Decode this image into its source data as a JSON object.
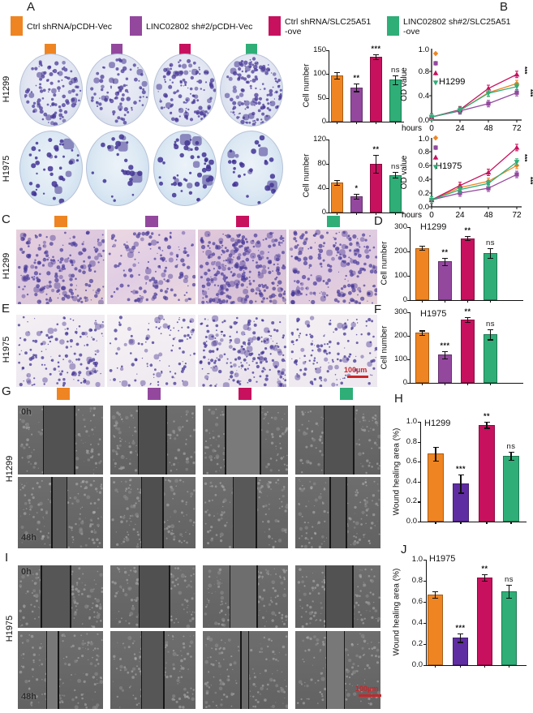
{
  "colors": {
    "series": [
      "#EE8522",
      "#93489E",
      "#C8115E",
      "#2FAE78"
    ],
    "dark_purple": "#5F2DA2",
    "scale_bar": "#C8262A",
    "axis": "#111111"
  },
  "conditions": [
    "Ctrl shRNA/pCDH-Vec",
    "LINC02802 sh#2/pCDH-Vec",
    "Ctrl shRNA/SLC25A51-ove",
    "LINC02802 sh#2/SLC25A51-ove"
  ],
  "cell_lines": [
    "H1299",
    "H1975"
  ],
  "legend": {
    "items": [
      {
        "label": "Ctrl shRNA/pCDH-Vec",
        "label2": ""
      },
      {
        "label": "LINC02802 sh#2/pCDH-Vec",
        "label2": ""
      },
      {
        "label": "Ctrl shRNA/SLC25A51",
        "label2": "-ove"
      },
      {
        "label": "LINC02802 sh#2/SLC25A51",
        "label2": "-ove"
      }
    ]
  },
  "panels": {
    "a": {
      "label": "A",
      "row_labels": [
        "H1299",
        "H1975"
      ]
    },
    "b": {
      "label": "B"
    },
    "c": {
      "label": "C",
      "row_label": "H1299"
    },
    "d": {
      "label": "D"
    },
    "e": {
      "label": "E",
      "row_label": "H1975",
      "scale_bar": "100µm"
    },
    "f": {
      "label": "F"
    },
    "g": {
      "label": "G",
      "row_label": "H1299",
      "time_labels": [
        "0h",
        "48h"
      ]
    },
    "h": {
      "label": "H"
    },
    "i": {
      "label": "I",
      "row_label": "H1975",
      "time_labels": [
        "0h",
        "48h"
      ],
      "scale_bar": "100µm"
    },
    "j": {
      "label": "J"
    }
  },
  "chart_data": [
    {
      "id": "A_h1299_colony",
      "panel": "A",
      "type": "bar",
      "title": "",
      "ylabel": "Cell number",
      "categories": [
        "Ctrl shRNA/pCDH-Vec",
        "LINC02802 sh#2/pCDH-Vec",
        "Ctrl shRNA/SLC25A51-ove",
        "LINC02802 sh#2/SLC25A51-ove"
      ],
      "values": [
        97,
        72,
        137,
        88
      ],
      "errors": [
        7,
        8,
        5,
        9
      ],
      "sig": [
        "",
        "**",
        "***",
        "ns"
      ],
      "ylim": [
        0,
        150
      ],
      "yticks": [
        0,
        50,
        100,
        150
      ],
      "ytick_labels": [
        "0",
        "50",
        "100",
        "150"
      ]
    },
    {
      "id": "A_h1975_colony",
      "panel": "A",
      "type": "bar",
      "title": "",
      "ylabel": "Cell number",
      "categories": [
        "Ctrl shRNA/pCDH-Vec",
        "LINC02802 sh#2/pCDH-Vec",
        "Ctrl shRNA/SLC25A51-ove",
        "LINC02802 sh#2/SLC25A51-ove"
      ],
      "values": [
        50,
        27,
        80,
        62
      ],
      "errors": [
        4,
        4,
        15,
        5
      ],
      "sig": [
        "",
        "*",
        "**",
        "ns"
      ],
      "ylim": [
        0,
        120
      ],
      "yticks": [
        0,
        40,
        80,
        120
      ],
      "ytick_labels": [
        "0",
        "40",
        "80",
        "120"
      ]
    },
    {
      "id": "B_h1299_cck8",
      "panel": "B",
      "type": "line",
      "title": "H1299",
      "ylabel": "OD value",
      "xlabel": "hours",
      "x": [
        0,
        24,
        48,
        72
      ],
      "xtick_labels": [
        "0",
        "24",
        "48",
        "72"
      ],
      "ylim": [
        0,
        1.0
      ],
      "yticks": [
        0,
        0.4,
        0.8
      ],
      "ytick_labels": [
        "0.0",
        "0.4",
        "0.8"
      ],
      "ymax_label": "1.0",
      "series": [
        {
          "name": "Ctrl shRNA/pCDH-Vec",
          "values": [
            0.05,
            0.16,
            0.45,
            0.6
          ]
        },
        {
          "name": "LINC02802 sh#2/pCDH-Vec",
          "values": [
            0.05,
            0.15,
            0.27,
            0.45
          ]
        },
        {
          "name": "Ctrl shRNA/SLC25A51-ove",
          "values": [
            0.05,
            0.17,
            0.52,
            0.75
          ]
        },
        {
          "name": "LINC02802 sh#2/SLC25A51-ove",
          "values": [
            0.05,
            0.16,
            0.44,
            0.55
          ]
        }
      ],
      "sig": [
        "***",
        "***"
      ]
    },
    {
      "id": "B_h1975_cck8",
      "panel": "B",
      "type": "line",
      "title": "H1975",
      "ylabel": "OD value",
      "xlabel": "hours",
      "x": [
        0,
        24,
        48,
        72
      ],
      "xtick_labels": [
        "0",
        "24",
        "48",
        "72"
      ],
      "ylim": [
        0,
        1.0
      ],
      "yticks": [
        0,
        0.2,
        0.4,
        0.6,
        0.8
      ],
      "ytick_labels": [
        "0.0",
        "0.2",
        "0.4",
        "0.6",
        "0.8"
      ],
      "ymax_label": "1.0",
      "series": [
        {
          "name": "Ctrl shRNA/pCDH-Vec",
          "values": [
            0.1,
            0.28,
            0.37,
            0.6
          ]
        },
        {
          "name": "LINC02802 sh#2/pCDH-Vec",
          "values": [
            0.1,
            0.2,
            0.27,
            0.47
          ]
        },
        {
          "name": "Ctrl shRNA/SLC25A51-ove",
          "values": [
            0.1,
            0.31,
            0.5,
            0.86
          ]
        },
        {
          "name": "LINC02802 sh#2/SLC25A51-ove",
          "values": [
            0.1,
            0.25,
            0.34,
            0.65
          ]
        }
      ],
      "sig": [
        "***",
        "***"
      ]
    },
    {
      "id": "D_h1299_transwell",
      "panel": "D",
      "type": "bar",
      "title": "H1299",
      "ylabel": "Cell number",
      "categories": [
        "Ctrl shRNA/pCDH-Vec",
        "LINC02802 sh#2/pCDH-Vec",
        "Ctrl shRNA/SLC25A51-ove",
        "LINC02802 sh#2/SLC25A51-ove"
      ],
      "values": [
        215,
        160,
        255,
        195
      ],
      "errors": [
        8,
        15,
        8,
        20
      ],
      "sig": [
        "",
        "**",
        "**",
        "ns"
      ],
      "ylim": [
        0,
        300
      ],
      "yticks": [
        0,
        100,
        200,
        300
      ],
      "ytick_labels": [
        "0",
        "100",
        "200",
        "300"
      ]
    },
    {
      "id": "F_h1975_transwell",
      "panel": "F",
      "type": "bar",
      "title": "H1975",
      "ylabel": "Cell number",
      "categories": [
        "Ctrl shRNA/pCDH-Vec",
        "LINC02802 sh#2/pCDH-Vec",
        "Ctrl shRNA/SLC25A51-ove",
        "LINC02802 sh#2/SLC25A51-ove"
      ],
      "values": [
        213,
        120,
        270,
        207
      ],
      "errors": [
        10,
        15,
        10,
        22
      ],
      "sig": [
        "",
        "***",
        "**",
        "ns"
      ],
      "ylim": [
        0,
        300
      ],
      "yticks": [
        0,
        100,
        200,
        300
      ],
      "ytick_labels": [
        "0",
        "100",
        "200",
        "300"
      ]
    },
    {
      "id": "H_h1299_wound",
      "panel": "H",
      "type": "bar",
      "title": "H1299",
      "ylabel": "Wound healing area (%)",
      "categories": [
        "Ctrl shRNA/pCDH-Vec",
        "LINC02802 sh#2/pCDH-Vec",
        "Ctrl shRNA/SLC25A51-ove",
        "LINC02802 sh#2/SLC25A51-ove"
      ],
      "values": [
        0.68,
        0.38,
        0.97,
        0.66
      ],
      "errors": [
        0.07,
        0.09,
        0.03,
        0.04
      ],
      "sig": [
        "",
        "***",
        "**",
        "ns"
      ],
      "colors": [
        "#EE8522",
        "#5F2DA2",
        "#C8115E",
        "#2FAE78"
      ],
      "ylim": [
        0,
        1.0
      ],
      "yticks": [
        0,
        0.2,
        0.4,
        0.6,
        0.8,
        1.0
      ],
      "ytick_labels": [
        "0.0",
        "0.2",
        "0.4",
        "0.6",
        "0.8",
        "1.0"
      ]
    },
    {
      "id": "J_h1975_wound",
      "panel": "J",
      "type": "bar",
      "title": "H1975",
      "ylabel": "Wound healing area (%)",
      "categories": [
        "Ctrl shRNA/pCDH-Vec",
        "LINC02802 sh#2/pCDH-Vec",
        "Ctrl shRNA/SLC25A51-ove",
        "LINC02802 sh#2/SLC25A51-ove"
      ],
      "values": [
        0.67,
        0.26,
        0.83,
        0.7
      ],
      "errors": [
        0.03,
        0.04,
        0.03,
        0.06
      ],
      "sig": [
        "",
        "***",
        "**",
        "ns"
      ],
      "colors": [
        "#EE8522",
        "#5F2DA2",
        "#C8115E",
        "#2FAE78"
      ],
      "ylim": [
        0,
        1.0
      ],
      "yticks": [
        0,
        0.2,
        0.4,
        0.6,
        0.8,
        1.0
      ],
      "ytick_labels": [
        "0.0",
        "0.2",
        "0.4",
        "0.6",
        "0.8",
        "1.0"
      ]
    }
  ]
}
